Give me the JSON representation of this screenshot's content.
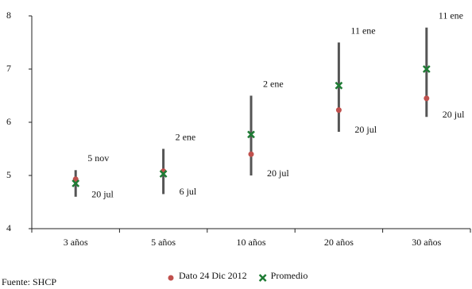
{
  "chart_data": {
    "type": "range",
    "categories": [
      "3 años",
      "5 años",
      "10 años",
      "20 años",
      "30 años"
    ],
    "high": [
      5.1,
      5.5,
      6.5,
      7.5,
      7.78
    ],
    "low": [
      4.6,
      4.65,
      5.0,
      5.82,
      6.1
    ],
    "high_labels": [
      "5 nov",
      "2 ene",
      "2 ene",
      "11 ene",
      "11 ene"
    ],
    "low_labels": [
      "20 jul",
      "6 jul",
      "20 jul",
      "20 jul",
      "20 jul"
    ],
    "range_color": "#555555",
    "series": [
      {
        "name": "Dato 24 Dic 2012",
        "color": "#c0504d",
        "values": [
          4.93,
          5.08,
          5.4,
          6.23,
          6.45
        ]
      },
      {
        "name": "Promedio",
        "color": "#1e7b34",
        "values": [
          4.85,
          5.03,
          5.77,
          6.69,
          7.0
        ]
      }
    ],
    "ylim": [
      4,
      8
    ],
    "yticks": [
      4,
      5,
      6,
      7,
      8
    ],
    "source": "Fuente: SHCP"
  }
}
